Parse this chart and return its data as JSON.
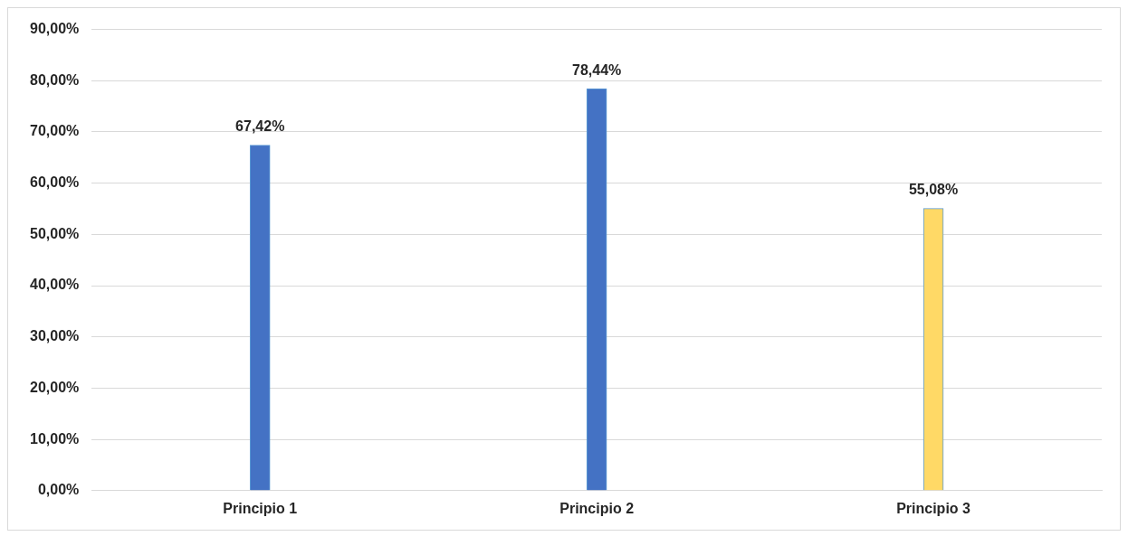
{
  "chart_data": {
    "type": "bar",
    "categories": [
      "Principio 1",
      "Principio 2",
      "Principio 3"
    ],
    "values": [
      67.42,
      78.44,
      55.08
    ],
    "colors": [
      "#4472c4",
      "#4472c4",
      "#ffd966"
    ],
    "value_labels": [
      "67,42%",
      "78,44%",
      "55,08%"
    ],
    "ylim": [
      0,
      90
    ],
    "yticks": [
      {
        "value": 0,
        "label": "0,00%"
      },
      {
        "value": 10,
        "label": "10,00%"
      },
      {
        "value": 20,
        "label": "20,00%"
      },
      {
        "value": 30,
        "label": "30,00%"
      },
      {
        "value": 40,
        "label": "40,00%"
      },
      {
        "value": 50,
        "label": "50,00%"
      },
      {
        "value": 60,
        "label": "60,00%"
      },
      {
        "value": 70,
        "label": "70,00%"
      },
      {
        "value": 80,
        "label": "80,00%"
      },
      {
        "value": 90,
        "label": "90,00%"
      }
    ],
    "grid": "y",
    "legend": false
  }
}
